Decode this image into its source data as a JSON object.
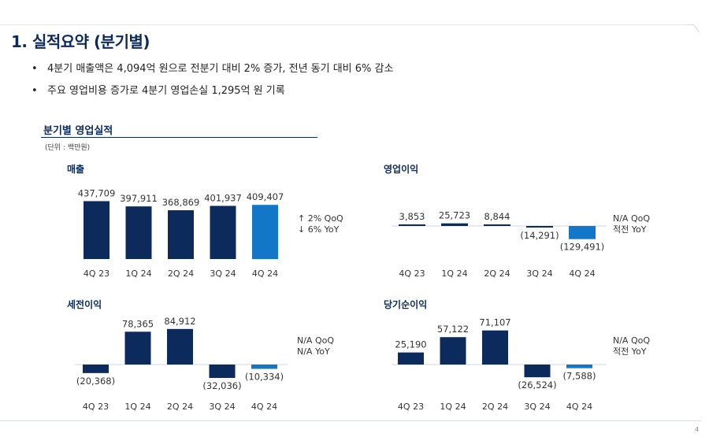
{
  "page": {
    "title": "1. 실적요약 (분기별)",
    "page_number": "4"
  },
  "bullets": [
    "4분기 매출액은 4,094억 원으로 전분기 대비 2% 증가, 전년 동기 대비 6% 감소",
    "주요 영업비용 증가로 4분기 영업손실 1,295억 원 기록"
  ],
  "section": {
    "title": "분기별 영업실적",
    "unit": "(단위 : 백만원)"
  },
  "colors": {
    "primary": "#0c2b5c",
    "highlight": "#1377c9"
  },
  "chart_data": [
    {
      "type": "bar",
      "title": "매출",
      "categories": [
        "4Q 23",
        "1Q 24",
        "2Q 24",
        "3Q 24",
        "4Q 24"
      ],
      "values": [
        437709,
        397911,
        368869,
        401937,
        409407
      ],
      "value_labels": [
        "437,709",
        "397,911",
        "368,869",
        "401,937",
        "409,407"
      ],
      "highlight_index": 4,
      "annotation": [
        "↑ 2% QoQ",
        "↓ 6% YoY"
      ]
    },
    {
      "type": "bar",
      "title": "영업이익",
      "categories": [
        "4Q 23",
        "1Q 24",
        "2Q 24",
        "3Q 24",
        "4Q 24"
      ],
      "values": [
        3853,
        25723,
        8844,
        -14291,
        -129491
      ],
      "value_labels": [
        "3,853",
        "25,723",
        "8,844",
        "(14,291)",
        "(129,491)"
      ],
      "highlight_index": 4,
      "annotation": [
        "N/A QoQ",
        "적전 YoY"
      ]
    },
    {
      "type": "bar",
      "title": "세전이익",
      "categories": [
        "4Q 23",
        "1Q 24",
        "2Q 24",
        "3Q 24",
        "4Q 24"
      ],
      "values": [
        -20368,
        78365,
        84912,
        -32036,
        -10334
      ],
      "value_labels": [
        "(20,368)",
        "78,365",
        "84,912",
        "(32,036)",
        "(10,334)"
      ],
      "highlight_index": 4,
      "annotation": [
        "N/A QoQ",
        "N/A YoY"
      ]
    },
    {
      "type": "bar",
      "title": "당기순이익",
      "categories": [
        "4Q 23",
        "1Q 24",
        "2Q 24",
        "3Q 24",
        "4Q 24"
      ],
      "values": [
        25190,
        57122,
        71107,
        -26524,
        -7588
      ],
      "value_labels": [
        "25,190",
        "57,122",
        "71,107",
        "(26,524)",
        "(7,588)"
      ],
      "highlight_index": 4,
      "annotation": [
        "N/A QoQ",
        "적전 YoY"
      ]
    }
  ]
}
